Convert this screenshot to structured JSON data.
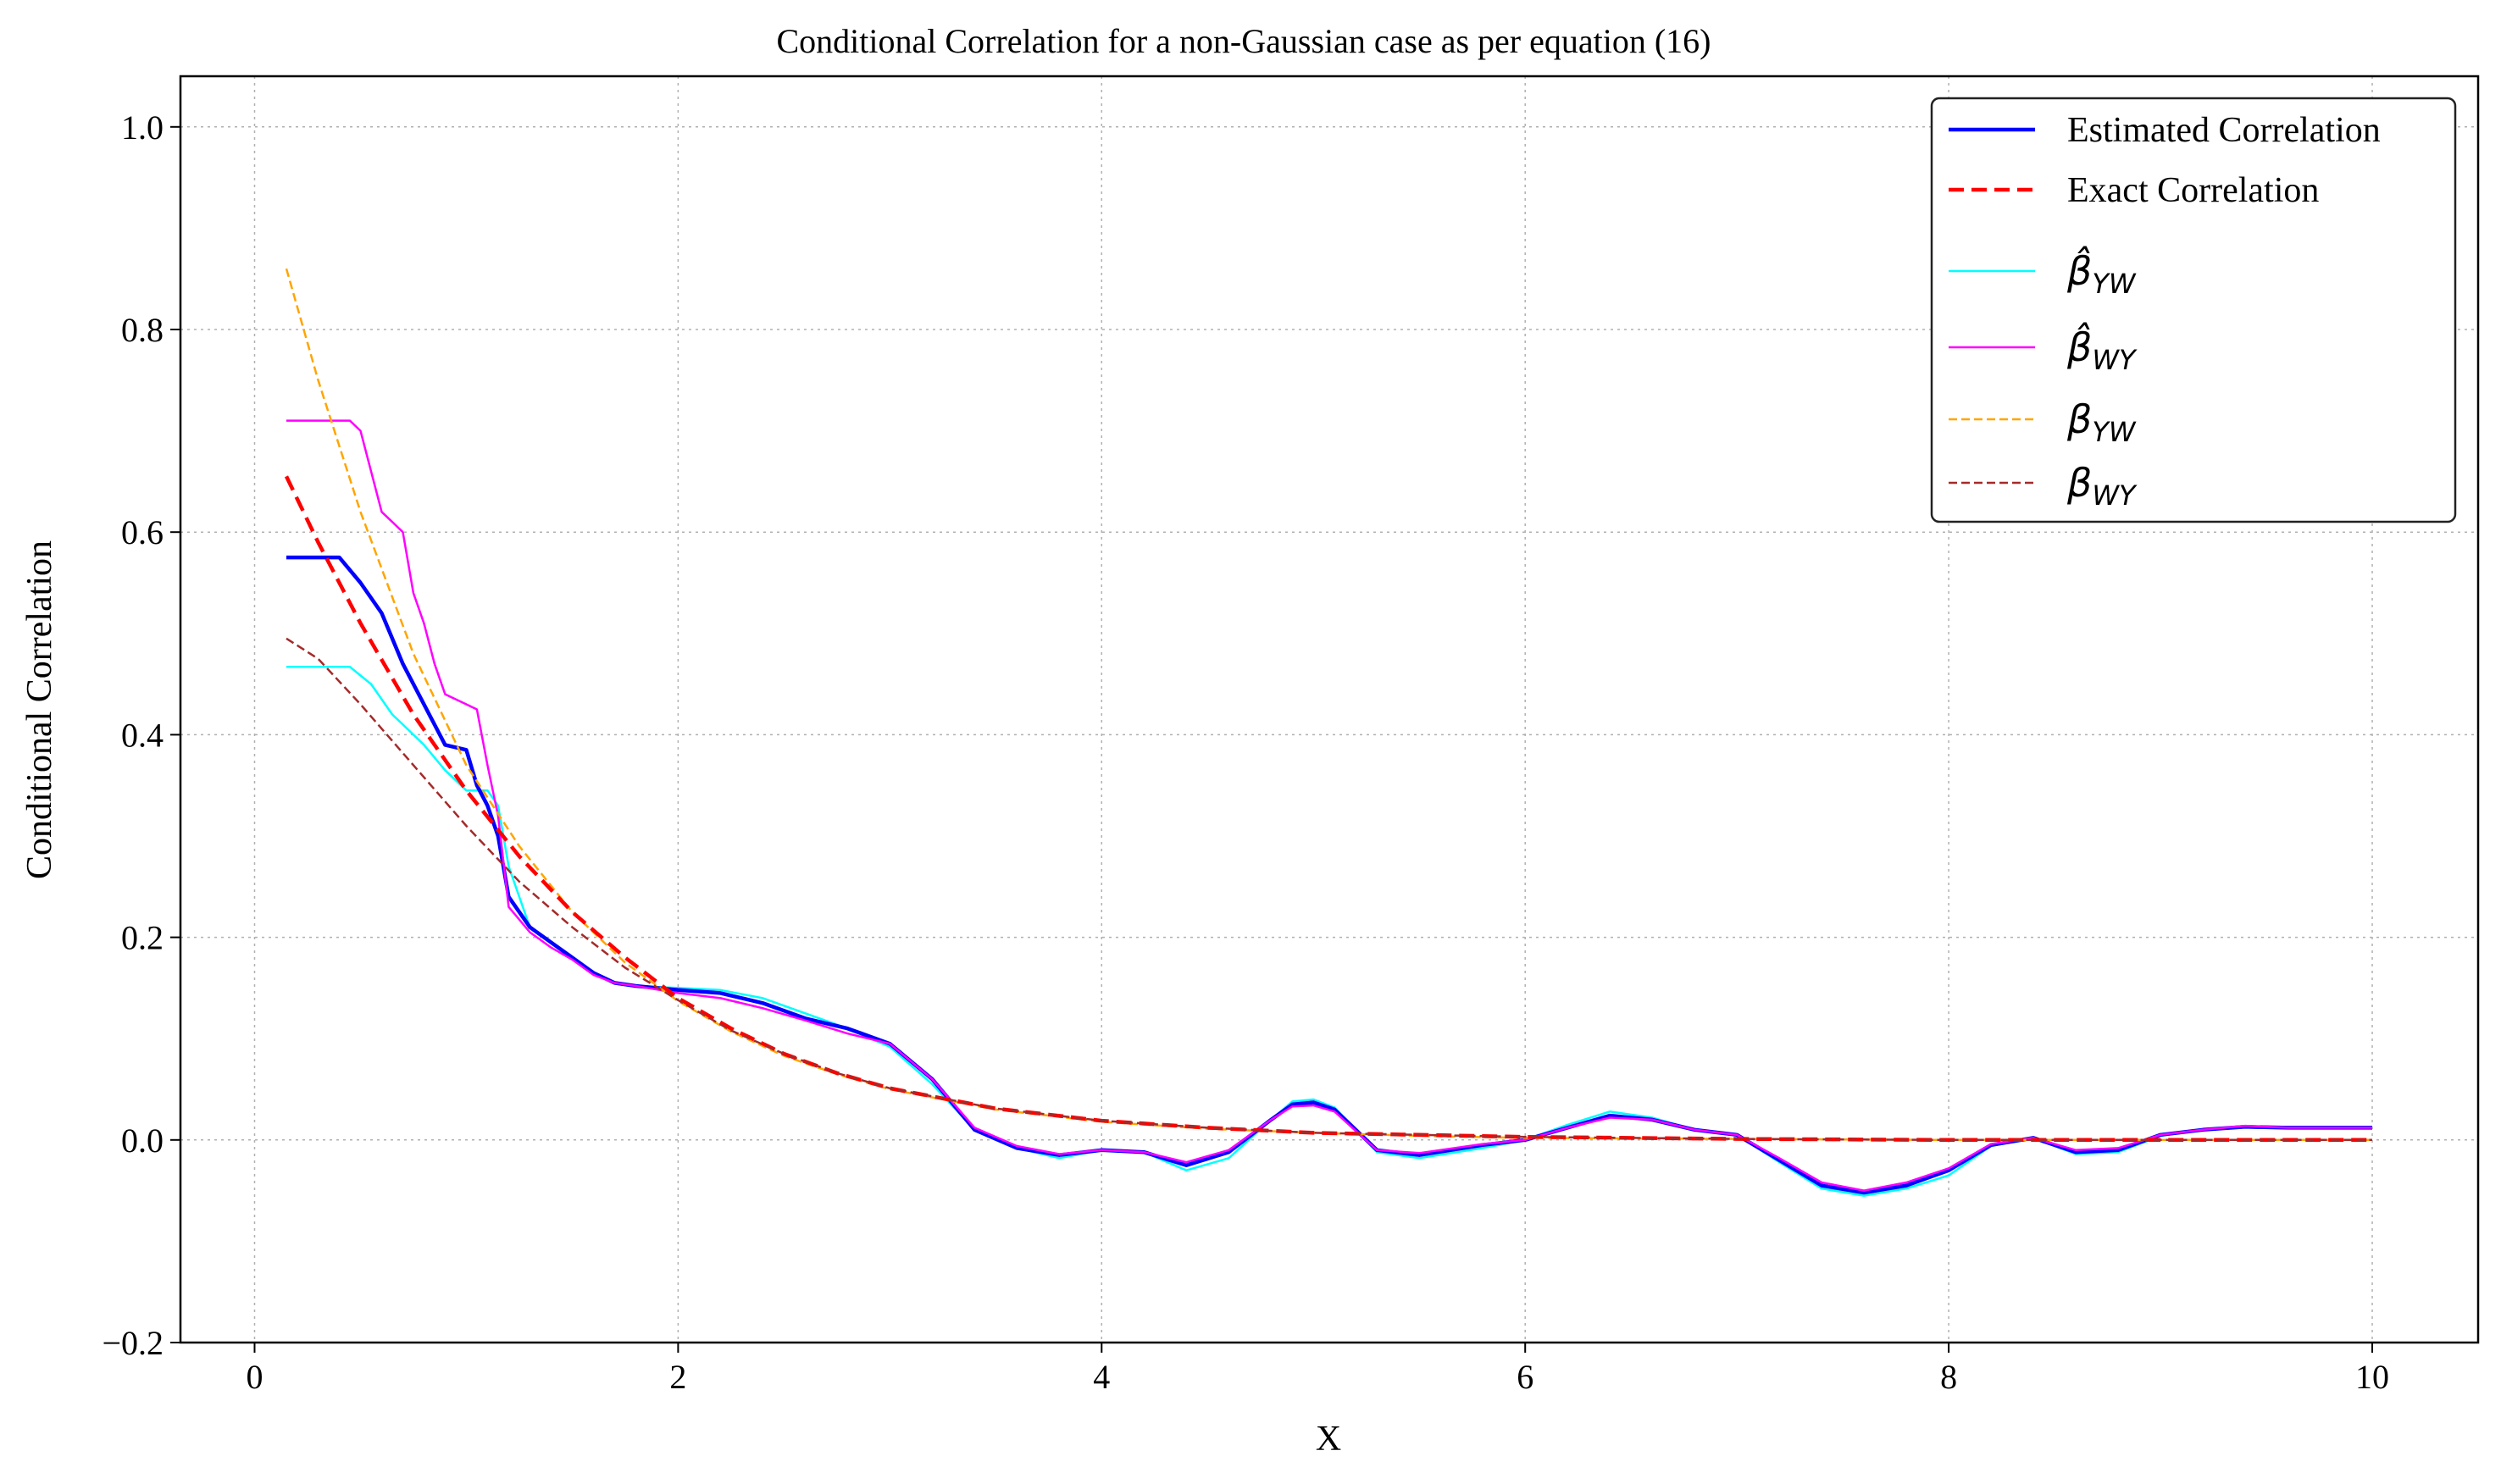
{
  "chart_data": {
    "type": "line",
    "title": "Conditional Correlation for a non-Gaussian case as per equation (16)",
    "xlabel": "X",
    "ylabel": "Conditional Correlation",
    "xlim": [
      -0.35,
      10.5
    ],
    "ylim": [
      -0.2,
      1.05
    ],
    "xticks": [
      0,
      2,
      4,
      6,
      8,
      10
    ],
    "xtick_labels": [
      "0",
      "2",
      "4",
      "6",
      "8",
      "10"
    ],
    "yticks": [
      -0.2,
      0.0,
      0.2,
      0.4,
      0.6,
      0.8,
      1.0
    ],
    "ytick_labels": [
      "−0.2",
      "0.0",
      "0.2",
      "0.4",
      "0.6",
      "0.8",
      "1.0"
    ],
    "grid": true,
    "legend_position": "top-right",
    "series": [
      {
        "name": "Estimated Correlation",
        "color": "#0000ff",
        "style": "solid",
        "x": [
          0.15,
          0.4,
          0.5,
          0.6,
          0.7,
          0.8,
          0.9,
          1.0,
          1.05,
          1.1,
          1.15,
          1.2,
          1.3,
          1.4,
          1.5,
          1.6,
          1.7,
          1.8,
          2.0,
          2.2,
          2.4,
          2.6,
          2.8,
          3.0,
          3.2,
          3.4,
          3.6,
          3.8,
          4.0,
          4.2,
          4.4,
          4.6,
          4.8,
          4.9,
          5.0,
          5.1,
          5.3,
          5.5,
          5.8,
          6.0,
          6.2,
          6.4,
          6.6,
          6.8,
          7.0,
          7.2,
          7.4,
          7.6,
          7.8,
          8.0,
          8.2,
          8.4,
          8.6,
          8.8,
          9.0,
          9.2,
          9.4,
          9.6,
          10.0
        ],
        "values": [
          0.575,
          0.575,
          0.55,
          0.52,
          0.47,
          0.43,
          0.39,
          0.385,
          0.35,
          0.33,
          0.3,
          0.24,
          0.21,
          0.195,
          0.18,
          0.165,
          0.155,
          0.152,
          0.148,
          0.145,
          0.135,
          0.12,
          0.11,
          0.095,
          0.06,
          0.01,
          -0.008,
          -0.015,
          -0.01,
          -0.012,
          -0.025,
          -0.012,
          0.02,
          0.035,
          0.037,
          0.03,
          -0.01,
          -0.015,
          -0.005,
          0.0,
          0.012,
          0.024,
          0.02,
          0.01,
          0.005,
          -0.02,
          -0.045,
          -0.052,
          -0.045,
          -0.03,
          -0.005,
          0.002,
          -0.012,
          -0.01,
          0.005,
          0.01,
          0.013,
          0.012,
          0.012
        ]
      },
      {
        "name": "Exact Correlation",
        "color": "#ff0000",
        "style": "dashed",
        "x": [
          0.15,
          0.3,
          0.5,
          0.75,
          1.0,
          1.25,
          1.5,
          1.75,
          2.0,
          2.25,
          2.5,
          2.75,
          3.0,
          3.5,
          4.0,
          4.5,
          5.0,
          5.5,
          6.0,
          7.0,
          8.0,
          9.0,
          10.0
        ],
        "values": [
          0.655,
          0.59,
          0.51,
          0.42,
          0.345,
          0.28,
          0.225,
          0.18,
          0.14,
          0.11,
          0.085,
          0.066,
          0.051,
          0.031,
          0.019,
          0.012,
          0.007,
          0.005,
          0.003,
          0.001,
          0.0,
          0.0,
          0.0
        ]
      },
      {
        "name": "β̂_YW",
        "color": "#00ffff",
        "style": "solid",
        "x": [
          0.15,
          0.45,
          0.55,
          0.65,
          0.7,
          0.8,
          0.9,
          1.0,
          1.1,
          1.15,
          1.2,
          1.3,
          1.4,
          1.5,
          1.6,
          1.7,
          1.8,
          2.0,
          2.2,
          2.4,
          2.6,
          2.8,
          3.0,
          3.2,
          3.4,
          3.6,
          3.8,
          4.0,
          4.2,
          4.4,
          4.6,
          4.8,
          4.9,
          5.0,
          5.1,
          5.3,
          5.5,
          5.8,
          6.0,
          6.2,
          6.4,
          6.6,
          6.8,
          7.0,
          7.2,
          7.4,
          7.6,
          7.8,
          8.0,
          8.2,
          8.4,
          8.6,
          8.8,
          9.0,
          9.2,
          9.4,
          9.6,
          10.0
        ],
        "values": [
          0.467,
          0.467,
          0.45,
          0.42,
          0.41,
          0.39,
          0.365,
          0.345,
          0.345,
          0.33,
          0.27,
          0.21,
          0.195,
          0.18,
          0.165,
          0.155,
          0.152,
          0.15,
          0.148,
          0.14,
          0.125,
          0.11,
          0.092,
          0.055,
          0.01,
          -0.008,
          -0.018,
          -0.01,
          -0.012,
          -0.03,
          -0.018,
          0.02,
          0.038,
          0.04,
          0.032,
          -0.012,
          -0.018,
          -0.008,
          0.0,
          0.015,
          0.028,
          0.022,
          0.01,
          0.005,
          -0.022,
          -0.048,
          -0.055,
          -0.048,
          -0.035,
          -0.006,
          0.002,
          -0.014,
          -0.012,
          0.004,
          0.01,
          0.013,
          0.013,
          0.013
        ]
      },
      {
        "name": "β̂_WY",
        "color": "#ff00ff",
        "style": "solid",
        "x": [
          0.15,
          0.45,
          0.5,
          0.55,
          0.6,
          0.65,
          0.7,
          0.75,
          0.8,
          0.85,
          0.9,
          1.0,
          1.05,
          1.1,
          1.15,
          1.2,
          1.3,
          1.4,
          1.5,
          1.6,
          1.7,
          1.8,
          2.0,
          2.2,
          2.4,
          2.6,
          2.8,
          3.0,
          3.2,
          3.4,
          3.6,
          3.8,
          4.0,
          4.2,
          4.4,
          4.6,
          4.8,
          4.9,
          5.0,
          5.1,
          5.3,
          5.5,
          5.8,
          6.0,
          6.2,
          6.4,
          6.6,
          6.8,
          7.0,
          7.2,
          7.4,
          7.6,
          7.8,
          8.0,
          8.2,
          8.4,
          8.6,
          8.8,
          9.0,
          9.2,
          9.4,
          9.6,
          10.0
        ],
        "values": [
          0.71,
          0.71,
          0.7,
          0.66,
          0.62,
          0.61,
          0.6,
          0.54,
          0.51,
          0.47,
          0.44,
          0.43,
          0.425,
          0.37,
          0.32,
          0.23,
          0.205,
          0.19,
          0.178,
          0.163,
          0.155,
          0.152,
          0.145,
          0.14,
          0.13,
          0.118,
          0.105,
          0.095,
          0.06,
          0.012,
          -0.006,
          -0.014,
          -0.01,
          -0.012,
          -0.022,
          -0.01,
          0.02,
          0.033,
          0.034,
          0.028,
          -0.01,
          -0.013,
          -0.004,
          0.0,
          0.012,
          0.022,
          0.02,
          0.01,
          0.005,
          -0.018,
          -0.042,
          -0.05,
          -0.042,
          -0.028,
          -0.004,
          0.002,
          -0.01,
          -0.008,
          0.005,
          0.01,
          0.014,
          0.012,
          0.012
        ]
      },
      {
        "name": "β_YW",
        "color": "#ffa500",
        "style": "dashed",
        "x": [
          0.15,
          0.3,
          0.5,
          0.75,
          1.0,
          1.25,
          1.5,
          1.75,
          2.0,
          2.25,
          2.5,
          2.75,
          3.0,
          3.5,
          4.0,
          4.5,
          5.0,
          5.5,
          6.0,
          7.0,
          8.0,
          9.0,
          10.0
        ],
        "values": [
          0.86,
          0.75,
          0.62,
          0.48,
          0.37,
          0.29,
          0.225,
          0.175,
          0.137,
          0.107,
          0.083,
          0.065,
          0.05,
          0.03,
          0.018,
          0.011,
          0.007,
          0.004,
          0.002,
          0.001,
          0.0,
          0.0,
          0.0
        ]
      },
      {
        "name": "β_WY",
        "color": "#a52a2a",
        "style": "dashed",
        "x": [
          0.15,
          0.3,
          0.5,
          0.75,
          1.0,
          1.25,
          1.5,
          1.75,
          2.0,
          2.25,
          2.5,
          2.75,
          3.0,
          3.5,
          4.0,
          4.5,
          5.0,
          5.5,
          6.0,
          7.0,
          8.0,
          9.0,
          10.0
        ],
        "values": [
          0.495,
          0.475,
          0.43,
          0.37,
          0.31,
          0.255,
          0.21,
          0.17,
          0.138,
          0.108,
          0.085,
          0.066,
          0.051,
          0.031,
          0.019,
          0.012,
          0.007,
          0.005,
          0.003,
          0.001,
          0.0,
          0.0,
          0.0
        ]
      }
    ]
  }
}
